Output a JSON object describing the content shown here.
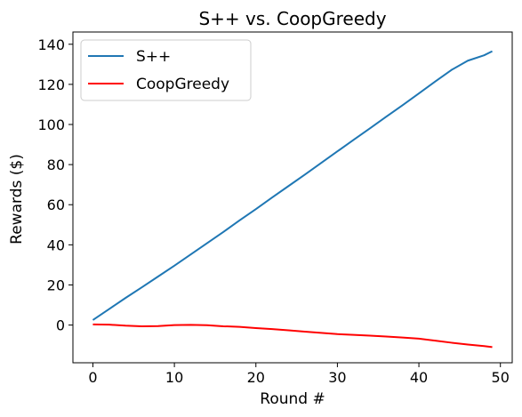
{
  "chart_data": {
    "type": "line",
    "title": "S++ vs. CoopGreedy",
    "xlabel": "Round #",
    "ylabel": "Rewards ($)",
    "xlim": [
      -2.45,
      51.45
    ],
    "ylim": [
      -18.8,
      146.1
    ],
    "x_ticks": [
      0,
      10,
      20,
      30,
      40,
      50
    ],
    "y_ticks": [
      0,
      20,
      40,
      60,
      80,
      100,
      120,
      140
    ],
    "grid": false,
    "legend_position": "top-left",
    "series": [
      {
        "name": "S++",
        "color": "#1f77b4",
        "x": [
          0,
          2,
          4,
          6,
          8,
          10,
          12,
          14,
          16,
          18,
          20,
          22,
          24,
          26,
          28,
          30,
          32,
          34,
          36,
          38,
          40,
          42,
          44,
          46,
          48,
          49
        ],
        "y": [
          2.5,
          8.0,
          13.5,
          18.8,
          24.2,
          29.6,
          35.2,
          40.8,
          46.4,
          52.2,
          57.8,
          63.6,
          69.3,
          75.0,
          80.8,
          86.6,
          92.4,
          98.1,
          103.9,
          109.6,
          115.5,
          121.4,
          127.2,
          131.8,
          134.5,
          136.5
        ]
      },
      {
        "name": "CoopGreedy",
        "color": "#ff0000",
        "x": [
          0,
          2,
          4,
          6,
          8,
          10,
          12,
          14,
          16,
          18,
          20,
          22,
          24,
          26,
          28,
          30,
          32,
          34,
          36,
          38,
          40,
          42,
          44,
          46,
          48,
          49
        ],
        "y": [
          0.3,
          0.2,
          -0.3,
          -0.6,
          -0.5,
          0.0,
          0.1,
          -0.1,
          -0.6,
          -0.9,
          -1.5,
          -2.0,
          -2.6,
          -3.3,
          -3.9,
          -4.5,
          -4.9,
          -5.3,
          -5.7,
          -6.2,
          -6.8,
          -7.8,
          -8.8,
          -9.7,
          -10.5,
          -11.0
        ]
      }
    ]
  }
}
